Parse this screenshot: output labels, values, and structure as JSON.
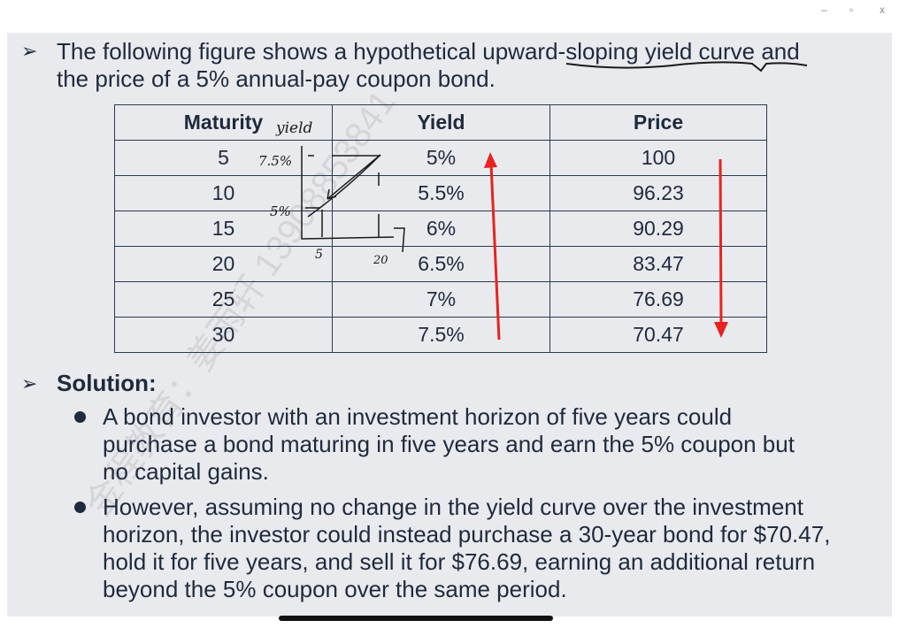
{
  "window": {
    "minimize": "–",
    "maximize": "▫",
    "close": "x"
  },
  "intro": {
    "line1": "The following figure shows a hypothetical upward-sloping yield curve and",
    "line2": "the price of a 5% annual-pay coupon bond."
  },
  "table": {
    "headers": [
      "Maturity",
      "Yield",
      "Price"
    ],
    "rows": [
      [
        "5",
        "5%",
        "100"
      ],
      [
        "10",
        "5.5%",
        "96.23"
      ],
      [
        "15",
        "6%",
        "90.29"
      ],
      [
        "20",
        "6.5%",
        "83.47"
      ],
      [
        "25",
        "7%",
        "76.69"
      ],
      [
        "30",
        "7.5%",
        "70.47"
      ]
    ]
  },
  "solution": {
    "heading": "Solution:",
    "bullets": [
      [
        "A bond investor with an investment horizon of five years could",
        "purchase a bond maturing in five years and earn the 5% coupon but",
        "no capital gains."
      ],
      [
        "However, assuming no change in the yield curve over the investment",
        "horizon, the investor could instead purchase a 30-year bond for $70.47,",
        "hold it for five years, and sell it for $76.69, earning an additional return",
        "beyond the 5% coupon over the same period."
      ]
    ]
  },
  "annotations": {
    "yield": "yield",
    "y_high": "7.5%",
    "y_low": "5%",
    "x_low": "5",
    "x_high": "20"
  },
  "watermark": "金程教育：姜雨轩 13908853841",
  "colors": {
    "slide_bg": "#e9eaee",
    "text": "#1f2a3c",
    "arrow": "#e8231f"
  }
}
